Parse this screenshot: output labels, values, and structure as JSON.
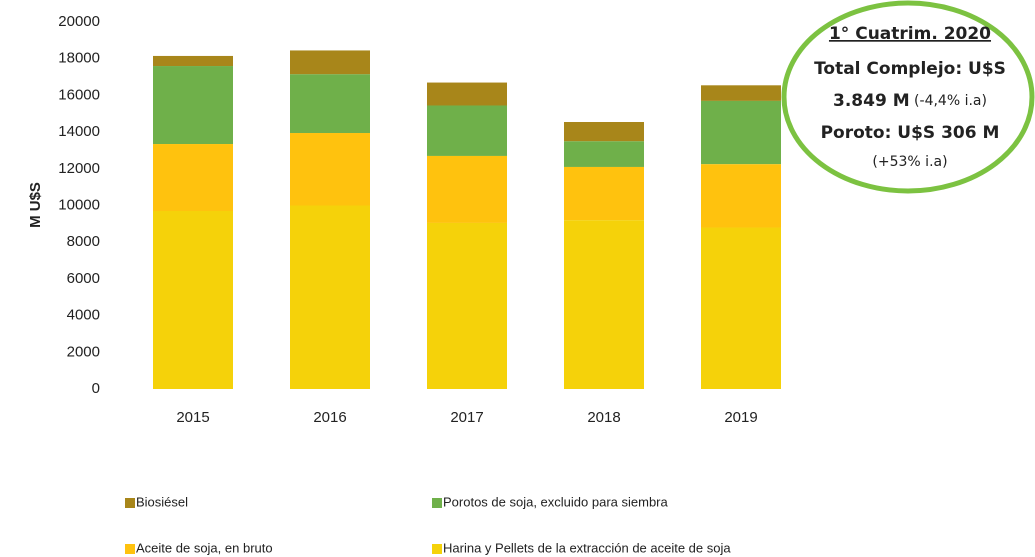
{
  "chart_data": {
    "type": "stacked_bar",
    "y_axis_label": "M U$S",
    "categories": [
      "2015",
      "2016",
      "2017",
      "2018",
      "2019"
    ],
    "series": [
      {
        "name": "Harina y Pellets de la extracción de aceite de soja",
        "color": "#f5d20a",
        "values": [
          9700,
          10000,
          9050,
          9200,
          8800
        ]
      },
      {
        "name": "Aceite de soja, en bruto",
        "color": "#ffc20e",
        "values": [
          3650,
          3950,
          3650,
          2900,
          3450
        ]
      },
      {
        "name": "Porotos de soja, excluido para siembra",
        "color": "#6fb04a",
        "values": [
          4250,
          3200,
          2750,
          1400,
          3450
        ]
      },
      {
        "name": "Biosiésel",
        "color": "#a8861a",
        "values": [
          550,
          1300,
          1250,
          1050,
          850
        ]
      }
    ],
    "ylim": [
      0,
      20000
    ],
    "yticks": [
      0,
      2000,
      4000,
      6000,
      8000,
      10000,
      12000,
      14000,
      16000,
      18000,
      20000
    ],
    "annotation": [
      "1° Cuatrim. 2020",
      "Total Complejo: U$S",
      "3.849 M",
      " (-4,4% i.a)",
      "Poroto: U$S 306 M",
      "(+53% i.a)"
    ]
  }
}
